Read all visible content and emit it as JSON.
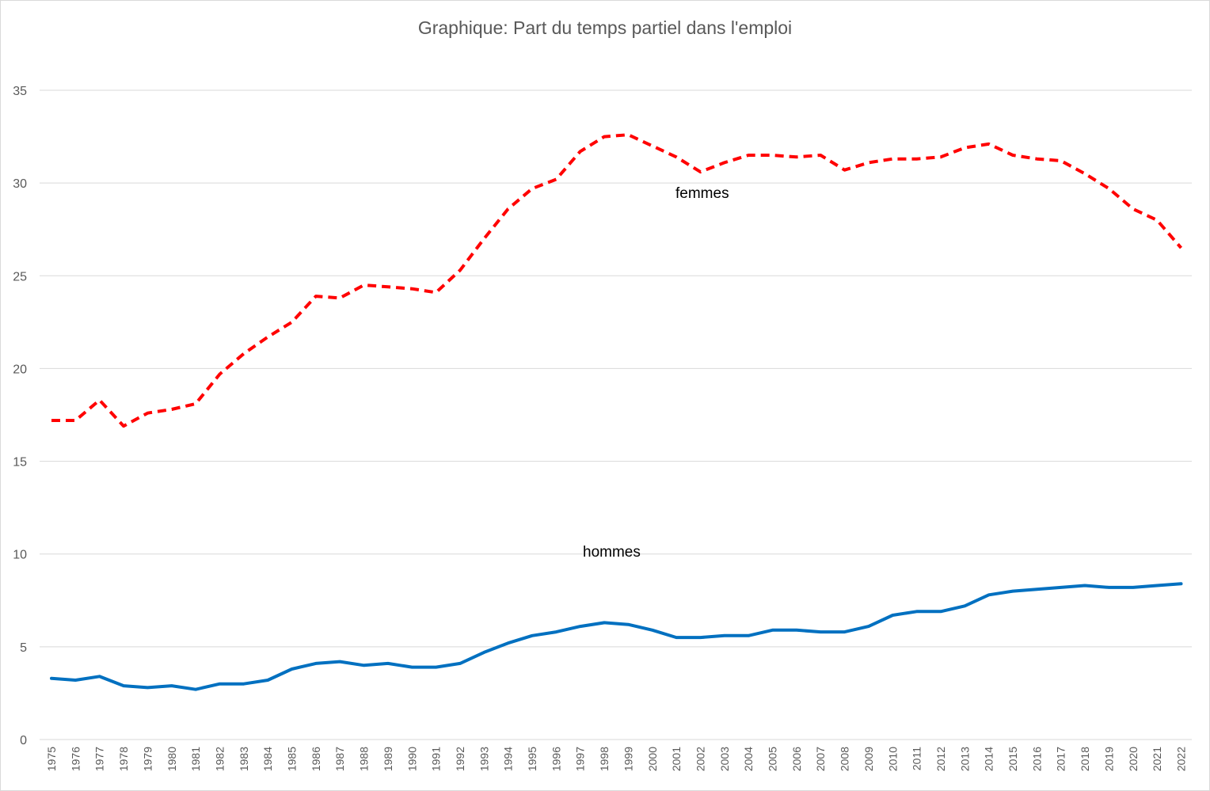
{
  "chart_data": {
    "type": "line",
    "title": "Graphique: Part du temps partiel dans l'emploi",
    "xlabel": "",
    "ylabel": "",
    "ylim": [
      0,
      35
    ],
    "yticks": [
      0,
      5,
      10,
      15,
      20,
      25,
      30,
      35
    ],
    "grid": true,
    "legend": "none",
    "categories": [
      "1975",
      "1976",
      "1977",
      "1978",
      "1979",
      "1980",
      "1981",
      "1982",
      "1983",
      "1984",
      "1985",
      "1986",
      "1987",
      "1988",
      "1989",
      "1990",
      "1991",
      "1992",
      "1993",
      "1994",
      "1995",
      "1996",
      "1997",
      "1998",
      "1999",
      "2000",
      "2001",
      "2002",
      "2003",
      "2004",
      "2005",
      "2006",
      "2007",
      "2008",
      "2009",
      "2010",
      "2011",
      "2012",
      "2013",
      "2014",
      "2015",
      "2016",
      "2017",
      "2018",
      "2019",
      "2020",
      "2021",
      "2022"
    ],
    "series": [
      {
        "name": "femmes",
        "color": "#ff0000",
        "style": "dashed",
        "values": [
          17.2,
          17.2,
          18.3,
          16.9,
          17.6,
          17.8,
          18.1,
          19.7,
          20.8,
          21.7,
          22.5,
          23.9,
          23.8,
          24.5,
          24.4,
          24.3,
          24.1,
          25.3,
          27.0,
          28.6,
          29.7,
          30.2,
          31.7,
          32.5,
          32.6,
          32.0,
          31.4,
          30.6,
          31.1,
          31.5,
          31.5,
          31.4,
          31.5,
          30.7,
          31.1,
          31.3,
          31.3,
          31.4,
          31.9,
          32.1,
          31.5,
          31.3,
          31.2,
          30.5,
          29.7,
          28.6,
          28.0,
          26.5
        ]
      },
      {
        "name": "hommes",
        "color": "#0070c0",
        "style": "solid",
        "values": [
          3.3,
          3.2,
          3.4,
          2.9,
          2.8,
          2.9,
          2.7,
          3.0,
          3.0,
          3.2,
          3.8,
          4.1,
          4.2,
          4.0,
          4.1,
          3.9,
          3.9,
          4.1,
          4.7,
          5.2,
          5.6,
          5.8,
          6.1,
          6.3,
          6.2,
          5.9,
          5.5,
          5.5,
          5.6,
          5.6,
          5.9,
          5.9,
          5.8,
          5.8,
          6.1,
          6.7,
          6.9,
          6.9,
          7.2,
          7.8,
          8.0,
          8.1,
          8.2,
          8.3,
          8.2,
          8.2,
          8.3,
          8.4
        ]
      }
    ]
  }
}
